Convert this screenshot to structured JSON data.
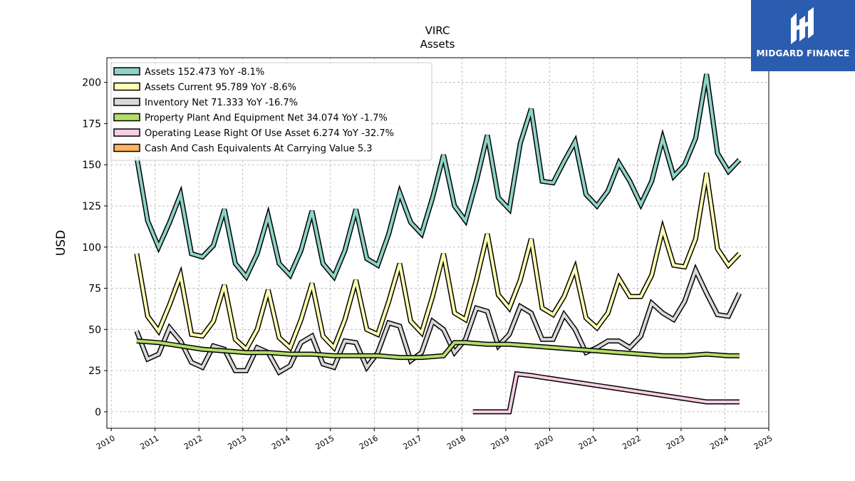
{
  "logo": {
    "text": "MIDGARD FINANCE"
  },
  "chart_data": {
    "type": "line",
    "title": "VIRC",
    "subtitle": "Assets",
    "xlabel": "",
    "ylabel": "USD",
    "xlim": [
      2009.9,
      2025.0
    ],
    "ylim": [
      -10,
      215
    ],
    "xticks": [
      2010,
      2011,
      2012,
      2013,
      2014,
      2015,
      2016,
      2017,
      2018,
      2019,
      2020,
      2021,
      2022,
      2023,
      2024,
      2025
    ],
    "yticks": [
      0,
      25,
      50,
      75,
      100,
      125,
      150,
      175,
      200
    ],
    "grid": true,
    "legend_position": "top-left",
    "series": [
      {
        "name": "Assets",
        "legend": "Assets  152.473 YoY -8.1%",
        "color": "#8dd3c7",
        "x": [
          2010.58,
          2010.83,
          2011.08,
          2011.33,
          2011.58,
          2011.83,
          2012.08,
          2012.33,
          2012.58,
          2012.83,
          2013.08,
          2013.33,
          2013.58,
          2013.83,
          2014.08,
          2014.33,
          2014.58,
          2014.83,
          2015.08,
          2015.33,
          2015.58,
          2015.83,
          2016.08,
          2016.33,
          2016.58,
          2016.83,
          2017.08,
          2017.33,
          2017.58,
          2017.83,
          2018.08,
          2018.33,
          2018.58,
          2018.83,
          2019.08,
          2019.33,
          2019.58,
          2019.83,
          2020.08,
          2020.33,
          2020.58,
          2020.83,
          2021.08,
          2021.33,
          2021.58,
          2021.83,
          2022.08,
          2022.33,
          2022.58,
          2022.83,
          2023.08,
          2023.33,
          2023.58,
          2023.83,
          2024.08,
          2024.33
        ],
        "values": [
          155,
          116,
          100,
          115,
          132,
          96,
          94,
          101,
          123,
          90,
          82,
          96,
          119,
          90,
          83,
          98,
          122,
          90,
          82,
          98,
          123,
          93,
          89,
          108,
          133,
          115,
          108,
          130,
          156,
          125,
          116,
          140,
          168,
          130,
          123,
          163,
          184,
          140,
          139,
          152,
          164,
          132,
          125,
          134,
          151,
          140,
          126,
          140,
          166,
          143,
          150,
          166,
          205,
          157,
          146,
          153
        ]
      },
      {
        "name": "Assets Current",
        "legend": "Assets Current  95.789 YoY -8.6%",
        "color": "#ffffb3",
        "x": [
          2010.58,
          2010.83,
          2011.08,
          2011.33,
          2011.58,
          2011.83,
          2012.08,
          2012.33,
          2012.58,
          2012.83,
          2013.08,
          2013.33,
          2013.58,
          2013.83,
          2014.08,
          2014.33,
          2014.58,
          2014.83,
          2015.08,
          2015.33,
          2015.58,
          2015.83,
          2016.08,
          2016.33,
          2016.58,
          2016.83,
          2017.08,
          2017.33,
          2017.58,
          2017.83,
          2018.08,
          2018.33,
          2018.58,
          2018.83,
          2019.08,
          2019.33,
          2019.58,
          2019.83,
          2020.08,
          2020.33,
          2020.58,
          2020.83,
          2021.08,
          2021.33,
          2021.58,
          2021.83,
          2022.08,
          2022.33,
          2022.58,
          2022.83,
          2023.08,
          2023.33,
          2023.58,
          2023.83,
          2024.08,
          2024.33
        ],
        "values": [
          96,
          58,
          49,
          65,
          83,
          47,
          46,
          55,
          77,
          44,
          38,
          50,
          74,
          45,
          39,
          56,
          78,
          46,
          39,
          56,
          80,
          50,
          47,
          67,
          90,
          55,
          48,
          70,
          96,
          60,
          56,
          80,
          108,
          71,
          63,
          80,
          105,
          63,
          59,
          70,
          87,
          57,
          51,
          60,
          81,
          70,
          70,
          83,
          111,
          89,
          88,
          105,
          145,
          99,
          89,
          96
        ]
      },
      {
        "name": "Inventory Net",
        "legend": "Inventory Net  71.333 YoY -16.7%",
        "color": "#d9d9d9",
        "x": [
          2010.58,
          2010.83,
          2011.08,
          2011.33,
          2011.58,
          2011.83,
          2012.08,
          2012.33,
          2012.58,
          2012.83,
          2013.08,
          2013.33,
          2013.58,
          2013.83,
          2014.08,
          2014.33,
          2014.58,
          2014.83,
          2015.08,
          2015.33,
          2015.58,
          2015.83,
          2016.08,
          2016.33,
          2016.58,
          2016.83,
          2017.08,
          2017.33,
          2017.58,
          2017.83,
          2018.08,
          2018.33,
          2018.58,
          2018.83,
          2019.08,
          2019.33,
          2019.58,
          2019.83,
          2020.08,
          2020.33,
          2020.58,
          2020.83,
          2021.08,
          2021.33,
          2021.58,
          2021.83,
          2022.08,
          2022.33,
          2022.58,
          2022.83,
          2023.08,
          2023.33,
          2023.58,
          2023.83,
          2024.08,
          2024.33
        ],
        "values": [
          49,
          32,
          35,
          51,
          43,
          30,
          27,
          40,
          38,
          25,
          25,
          39,
          36,
          24,
          28,
          42,
          46,
          29,
          27,
          43,
          42,
          27,
          36,
          54,
          52,
          31,
          36,
          55,
          50,
          36,
          44,
          63,
          61,
          40,
          47,
          64,
          60,
          44,
          44,
          59,
          50,
          36,
          39,
          43,
          43,
          39,
          46,
          66,
          60,
          56,
          67,
          86,
          72,
          59,
          58,
          72
        ]
      },
      {
        "name": "Property Plant And Equipment Net",
        "legend": "Property Plant And Equipment Net  34.074 YoY -1.7%",
        "color": "#b3de69",
        "x": [
          2010.58,
          2011.08,
          2011.58,
          2012.08,
          2012.58,
          2013.08,
          2013.58,
          2014.08,
          2014.58,
          2015.08,
          2015.58,
          2016.08,
          2016.58,
          2017.08,
          2017.58,
          2017.83,
          2018.08,
          2018.58,
          2019.08,
          2019.58,
          2020.08,
          2020.58,
          2021.08,
          2021.58,
          2022.08,
          2022.58,
          2023.08,
          2023.58,
          2024.08,
          2024.33
        ],
        "values": [
          43,
          42,
          40,
          38,
          37,
          36,
          36,
          35,
          35,
          34,
          34,
          34,
          33,
          33,
          34,
          42,
          42,
          41,
          41,
          40,
          39,
          38,
          37,
          36,
          35,
          34,
          34,
          35,
          34,
          34
        ]
      },
      {
        "name": "Operating Lease Right Of Use Asset",
        "legend": "Operating Lease Right Of Use Asset  6.274 YoY -32.7%",
        "color": "#fccde5",
        "x": [
          2018.25,
          2018.58,
          2018.83,
          2019.08,
          2019.25,
          2019.58,
          2019.83,
          2020.08,
          2020.58,
          2021.08,
          2021.58,
          2022.08,
          2022.58,
          2023.08,
          2023.58,
          2024.08,
          2024.33
        ],
        "values": [
          0,
          0,
          0,
          0,
          23,
          22,
          21,
          20,
          18,
          16,
          14,
          12,
          10,
          8,
          6,
          6,
          6
        ]
      },
      {
        "name": "Cash And Cash Equivalents At Carrying Value",
        "legend": "Cash And Cash Equivalents At Carrying Value  5.3",
        "color": "#fdb462",
        "x": [],
        "values": []
      }
    ]
  }
}
